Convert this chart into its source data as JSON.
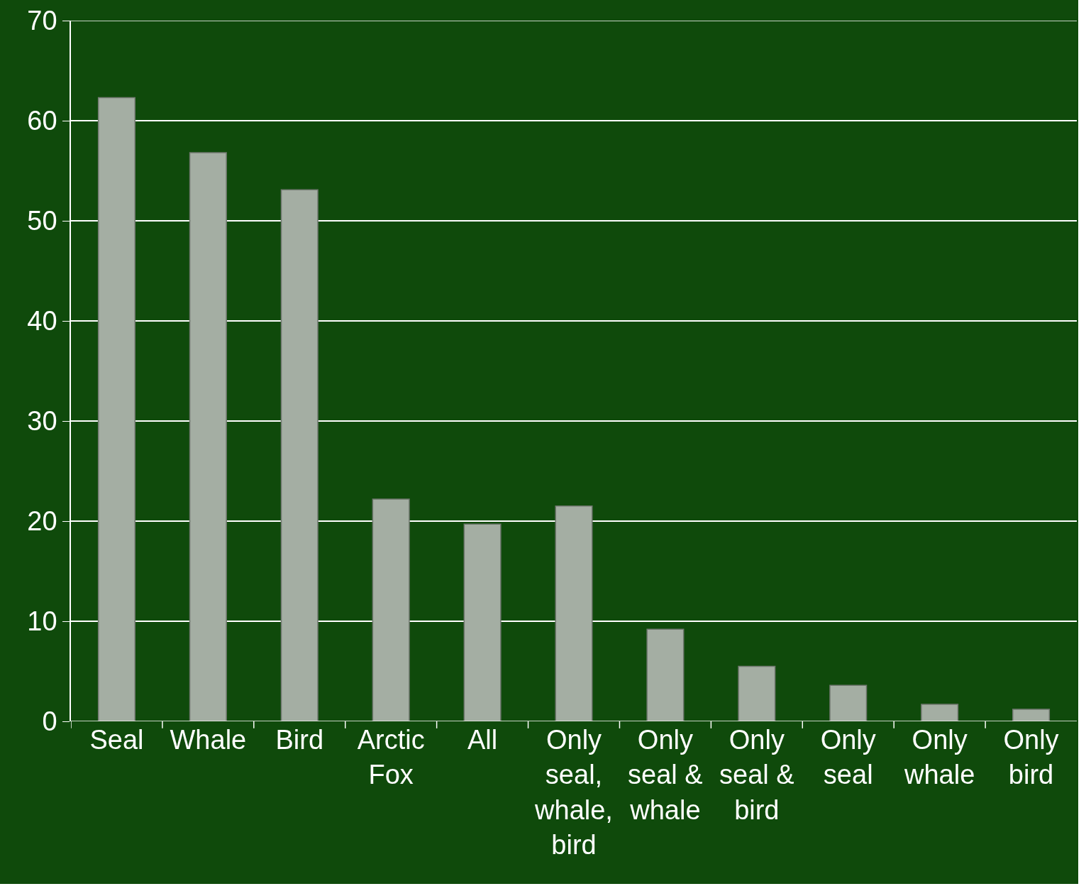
{
  "chart_data": {
    "type": "bar",
    "categories": [
      "Seal",
      "Whale",
      "Bird",
      "Arctic Fox",
      "All",
      "Only seal, whale, bird",
      "Only seal & whale",
      "Only seal & bird",
      "Only seal",
      "Only whale",
      "Only bird"
    ],
    "values": [
      62.3,
      56.8,
      53.1,
      22.2,
      19.7,
      21.5,
      9.2,
      5.5,
      3.6,
      1.7,
      1.2
    ],
    "color": "#a4aea3",
    "ylim": [
      0,
      70
    ],
    "yticks": [
      0,
      10,
      20,
      30,
      40,
      50,
      60,
      70
    ],
    "grid": "y"
  }
}
